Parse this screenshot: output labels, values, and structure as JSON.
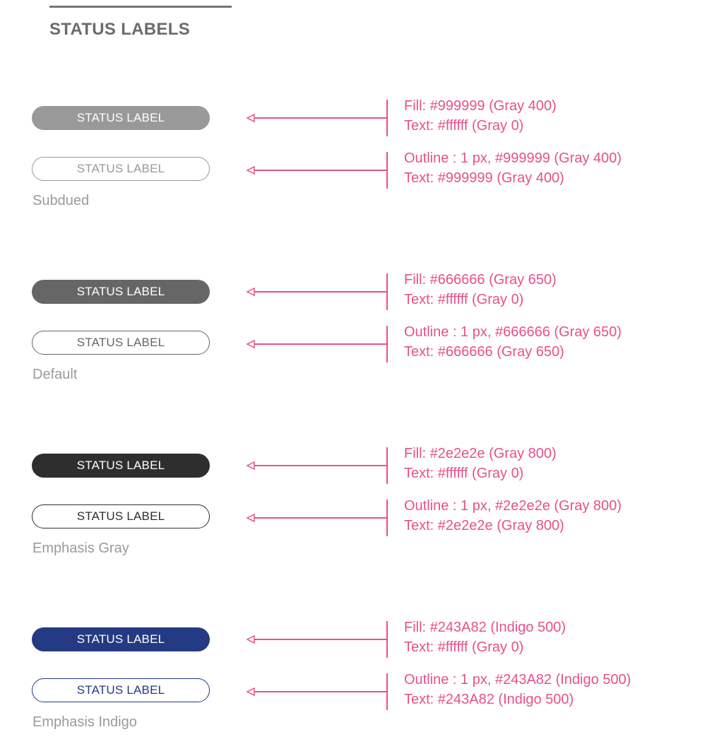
{
  "page": {
    "title": "STATUS LABELS"
  },
  "label_text": "STATUS LABEL",
  "groups": [
    {
      "name": "Subdued",
      "filled": {
        "fill": "#999999",
        "text": "#ffffff"
      },
      "outline": {
        "border": "#999999",
        "text": "#999999"
      },
      "notes": {
        "filled": [
          "Fill: #999999 (Gray 400)",
          "Text: #ffffff (Gray 0)"
        ],
        "outline": [
          "Outline : 1 px,  #999999 (Gray 400)",
          "Text: #999999 (Gray 400)"
        ]
      }
    },
    {
      "name": "Default",
      "filled": {
        "fill": "#666666",
        "text": "#ffffff"
      },
      "outline": {
        "border": "#666666",
        "text": "#666666"
      },
      "notes": {
        "filled": [
          "Fill: #666666 (Gray 650)",
          "Text: #ffffff (Gray 0)"
        ],
        "outline": [
          "Outline : 1 px,  #666666 (Gray 650)",
          "Text: #666666 (Gray 650)"
        ]
      }
    },
    {
      "name": "Emphasis Gray",
      "filled": {
        "fill": "#2e2e2e",
        "text": "#ffffff"
      },
      "outline": {
        "border": "#2e2e2e",
        "text": "#2e2e2e"
      },
      "notes": {
        "filled": [
          "Fill: #2e2e2e (Gray 800)",
          "Text: #ffffff (Gray 0)"
        ],
        "outline": [
          "Outline : 1 px,  #2e2e2e (Gray 800)",
          "Text: #2e2e2e (Gray 800)"
        ]
      }
    },
    {
      "name": "Emphasis Indigo",
      "filled": {
        "fill": "#243A82",
        "text": "#ffffff"
      },
      "outline": {
        "border": "#243A82",
        "text": "#243A82"
      },
      "notes": {
        "filled": [
          "Fill: #243A82 (Indigo 500)",
          "Text: #ffffff (Gray 0)"
        ],
        "outline": [
          "Outline : 1 px,  #243A82 (Indigo 500)",
          "Text: #243A82 (Indigo 500)"
        ]
      }
    }
  ],
  "annotation_color": "#e8508a"
}
